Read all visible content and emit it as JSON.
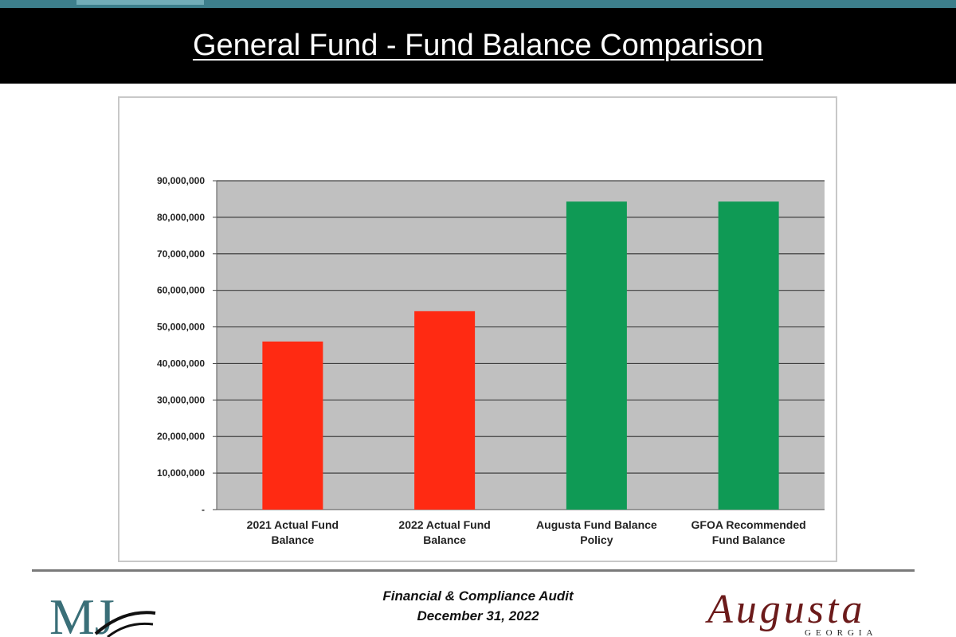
{
  "title": "General Fund - Fund Balance Comparison",
  "footer": {
    "line1": "Financial & Compliance Audit",
    "line2": "December 31, 2022",
    "left_logo_text": "MJ",
    "right_logo_text": "Augusta",
    "right_logo_subtext": "GEORGIA"
  },
  "colors": {
    "actual_bar": "#ff2a12",
    "policy_bar": "#0f9a55",
    "plot_background": "#c0c0c0",
    "gridline": "#404040"
  },
  "chart_data": {
    "type": "bar",
    "categories": [
      "2021 Actual Fund Balance",
      "2022 Actual Fund Balance",
      "Augusta Fund Balance Policy",
      "GFOA Recommended Fund Balance"
    ],
    "category_lines": [
      [
        "2021 Actual Fund",
        "Balance"
      ],
      [
        "2022 Actual Fund",
        "Balance"
      ],
      [
        "Augusta Fund Balance",
        "Policy"
      ],
      [
        "GFOA Recommended",
        "Fund Balance"
      ]
    ],
    "values": [
      46000000,
      54300000,
      84300000,
      84300000
    ],
    "bar_colors": [
      "#ff2a12",
      "#ff2a12",
      "#0f9a55",
      "#0f9a55"
    ],
    "ylim": [
      0,
      90000000
    ],
    "yticks": [
      0,
      10000000,
      20000000,
      30000000,
      40000000,
      50000000,
      60000000,
      70000000,
      80000000,
      90000000
    ],
    "ytick_labels": [
      "-",
      "10,000,000",
      "20,000,000",
      "30,000,000",
      "40,000,000",
      "50,000,000",
      "60,000,000",
      "70,000,000",
      "80,000,000",
      "90,000,000"
    ],
    "grid": true,
    "legend": "none",
    "title": "",
    "xlabel": "",
    "ylabel": ""
  }
}
